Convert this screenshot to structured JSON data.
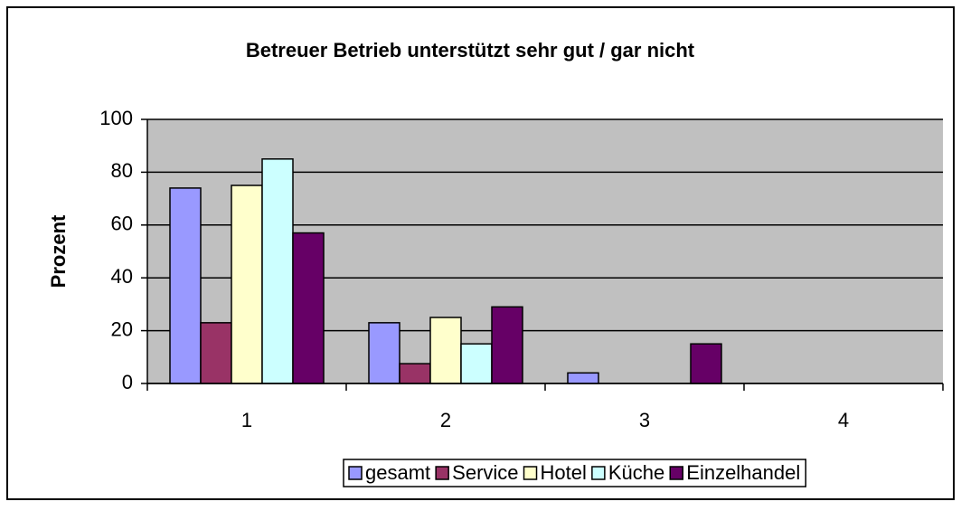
{
  "chart_data": {
    "type": "bar",
    "title": "Betreuer Betrieb unterstützt sehr gut / gar nicht",
    "y_label": "Prozent",
    "categories": [
      "1",
      "2",
      "3",
      "4"
    ],
    "series": [
      {
        "name": "gesamt",
        "color": "#9999ff",
        "values": [
          74,
          23,
          4,
          0
        ]
      },
      {
        "name": "Service",
        "color": "#993366",
        "values": [
          23,
          7.5,
          0,
          0
        ]
      },
      {
        "name": "Hotel",
        "color": "#ffffcc",
        "values": [
          75,
          25,
          0,
          0
        ]
      },
      {
        "name": "Küche",
        "color": "#ccffff",
        "values": [
          85,
          15,
          0,
          0
        ]
      },
      {
        "name": "Einzelhandel",
        "color": "#660066",
        "values": [
          57,
          29,
          15,
          0
        ]
      }
    ],
    "ylim": [
      0,
      100
    ],
    "yticks": [
      0,
      20,
      40,
      60,
      80,
      100
    ],
    "grid": true,
    "legend": "bottom",
    "plot_background": "#c0c0c0"
  }
}
